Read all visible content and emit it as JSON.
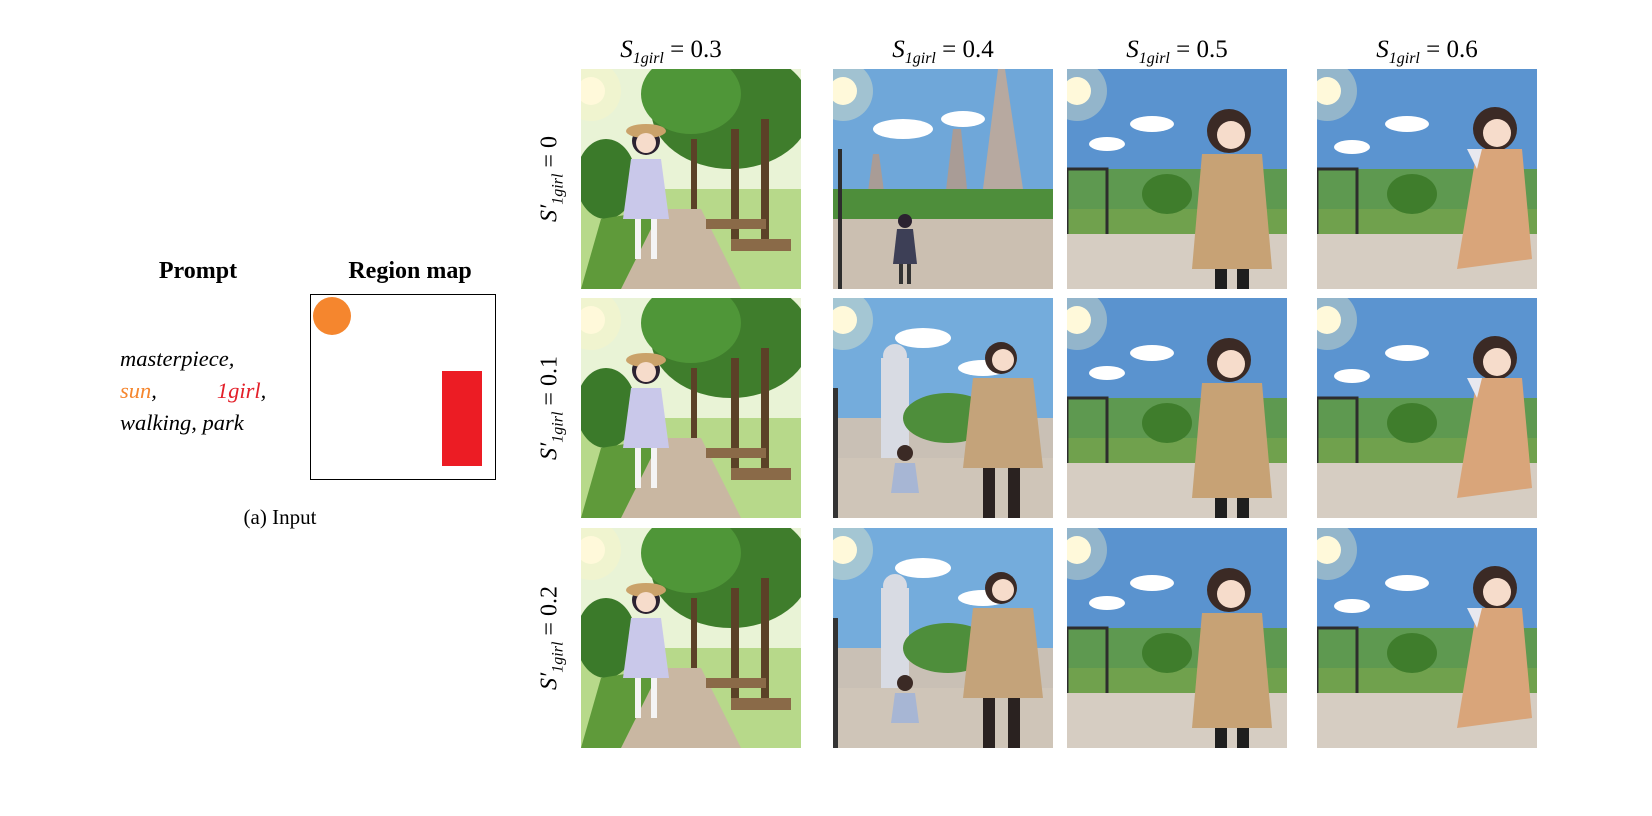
{
  "input": {
    "prompt_header": "Prompt",
    "region_map_header": "Region map",
    "prompt_line1": "masterpiece,",
    "prompt_sun": "sun",
    "prompt_comma1": ",",
    "prompt_girl": "1girl",
    "prompt_comma2": ",",
    "prompt_line3": "walking, park",
    "caption": "(a) Input",
    "colors": {
      "sun": "#f5862e",
      "girl": "#ec1c24"
    }
  },
  "grid": {
    "col_prefix": "S",
    "col_sub": "1girl",
    "col_values": [
      "= 0.3",
      "= 0.4",
      "= 0.5",
      "= 0.6"
    ],
    "row_prefix": "S′",
    "row_sub": "1girl",
    "row_values": [
      "= 0",
      "= 0.1",
      "= 0.2"
    ],
    "scenes": [
      [
        "tree-path-girl-in-hat",
        "city-cathedral-small-girl",
        "coat-girl-fence",
        "dress-girl-fence"
      ],
      [
        "tree-path-girl-in-hat",
        "tower-tall-girl-and-child",
        "coat-girl-fence",
        "dress-girl-fence"
      ],
      [
        "tree-path-girl-in-hat",
        "tower-tall-girl-and-child",
        "coat-girl-fence",
        "dress-girl-fence"
      ]
    ]
  }
}
